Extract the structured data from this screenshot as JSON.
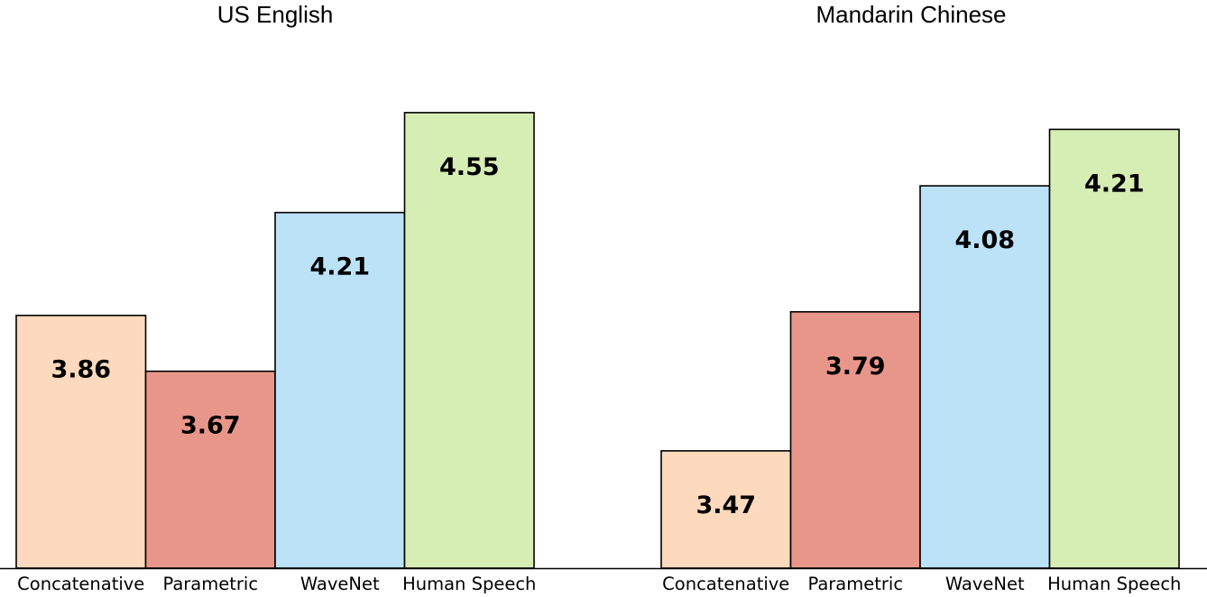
{
  "chart_data": [
    {
      "type": "bar",
      "title": "US English",
      "categories": [
        "Concatenative",
        "Parametric",
        "WaveNet",
        "Human Speech"
      ],
      "values": [
        3.86,
        3.67,
        4.21,
        4.55
      ],
      "value_labels": [
        "3.86",
        "3.67",
        "4.21",
        "4.55"
      ],
      "colors": [
        "#fdd9bd",
        "#e9968a",
        "#bce2f8",
        "#d6edb4"
      ],
      "xlabel": "",
      "ylabel": "",
      "ylim": [
        3.0,
        4.7
      ],
      "grid": false,
      "legend": "none"
    },
    {
      "type": "bar",
      "title": "Mandarin Chinese",
      "categories": [
        "Concatenative",
        "Parametric",
        "WaveNet",
        "Human Speech"
      ],
      "values": [
        3.47,
        3.79,
        4.08,
        4.21
      ],
      "value_labels": [
        "3.47",
        "3.79",
        "4.08",
        "4.21"
      ],
      "colors": [
        "#fdd9bd",
        "#e9968a",
        "#bce2f8",
        "#d6edb4"
      ],
      "xlabel": "",
      "ylabel": "",
      "ylim": [
        3.2,
        4.35
      ],
      "grid": false,
      "legend": "none"
    }
  ]
}
